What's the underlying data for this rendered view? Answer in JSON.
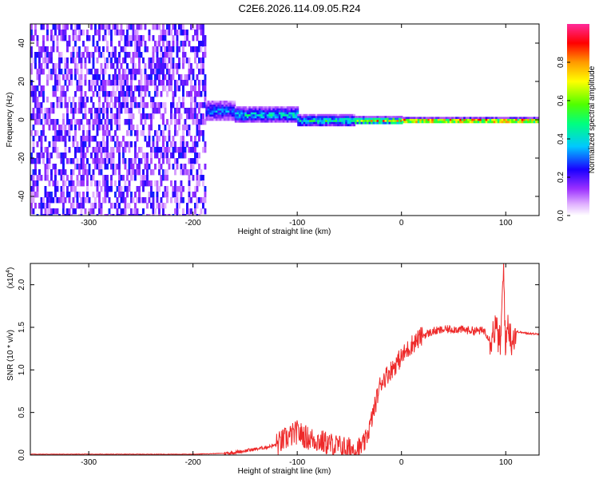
{
  "figure": {
    "title": "C2E6.2026.114.09.05.R24"
  },
  "chart_data": [
    {
      "type": "heatmap",
      "xlabel": "Height of straight line (km)",
      "ylabel": "Frequency (Hz)",
      "xlim": [
        -356,
        132
      ],
      "ylim": [
        -50,
        50
      ],
      "xticks": [
        -300,
        -200,
        -100,
        0,
        100
      ],
      "yticks": [
        -40,
        -20,
        0,
        20,
        40
      ],
      "colorbar": {
        "label": "Normalized spectral amplitude",
        "range": [
          0,
          1
        ],
        "ticks": [
          "0.0",
          "0.2",
          "0.4",
          "0.6",
          "0.8"
        ],
        "tick_values": [
          0.0,
          0.2,
          0.4,
          0.6,
          0.8
        ]
      },
      "regions": [
        {
          "x": [
            -356,
            -188
          ],
          "freq_center": 0,
          "freq_halfwidth": 50,
          "amplitude": 0.18,
          "note": "broadband noise"
        },
        {
          "x": [
            -188,
            -160
          ],
          "freq_center": 5,
          "freq_halfwidth": 5,
          "amplitude": 0.35
        },
        {
          "x": [
            -160,
            -100
          ],
          "freq_center": 3,
          "freq_halfwidth": 4,
          "amplitude": 0.45
        },
        {
          "x": [
            -100,
            -45
          ],
          "freq_center": 0,
          "freq_halfwidth": 3,
          "amplitude": 0.5
        },
        {
          "x": [
            -45,
            0
          ],
          "freq_center": 0,
          "freq_halfwidth": 2,
          "amplitude": 0.8
        },
        {
          "x": [
            0,
            132
          ],
          "freq_center": 0,
          "freq_halfwidth": 1.5,
          "amplitude": 1.0
        }
      ]
    },
    {
      "type": "line",
      "xlabel": "Height of straight line (km)",
      "ylabel": "SNR (10 * v/v)",
      "yscale_label": "(x10",
      "yscale_exp": "4",
      "xlim": [
        -356,
        132
      ],
      "ylim": [
        0,
        2.25
      ],
      "xticks": [
        -300,
        -200,
        -100,
        0,
        100
      ],
      "yticks": [
        "0.0",
        "0.5",
        "1.0",
        "1.5",
        "2.0"
      ],
      "ytick_values": [
        0.0,
        0.5,
        1.0,
        1.5,
        2.0
      ],
      "series": [
        {
          "color": "#ee2a2a",
          "x": [
            -356,
            -300,
            -250,
            -200,
            -170,
            -160,
            -150,
            -140,
            -130,
            -120,
            -110,
            -100,
            -90,
            -80,
            -70,
            -60,
            -50,
            -40,
            -35,
            -30,
            -25,
            -20,
            -10,
            0,
            10,
            20,
            30,
            40,
            50,
            60,
            70,
            80,
            85,
            90,
            95,
            98,
            100,
            102,
            105,
            110,
            120,
            132
          ],
          "y": [
            0.01,
            0.01,
            0.01,
            0.01,
            0.02,
            0.03,
            0.05,
            0.07,
            0.09,
            0.12,
            0.2,
            0.27,
            0.2,
            0.17,
            0.13,
            0.1,
            0.07,
            0.08,
            0.15,
            0.35,
            0.6,
            0.85,
            1.0,
            1.15,
            1.3,
            1.4,
            1.45,
            1.47,
            1.48,
            1.47,
            1.46,
            1.46,
            1.35,
            1.5,
            1.3,
            2.2,
            1.2,
            1.6,
            1.35,
            1.45,
            1.43,
            1.42
          ]
        }
      ]
    }
  ]
}
